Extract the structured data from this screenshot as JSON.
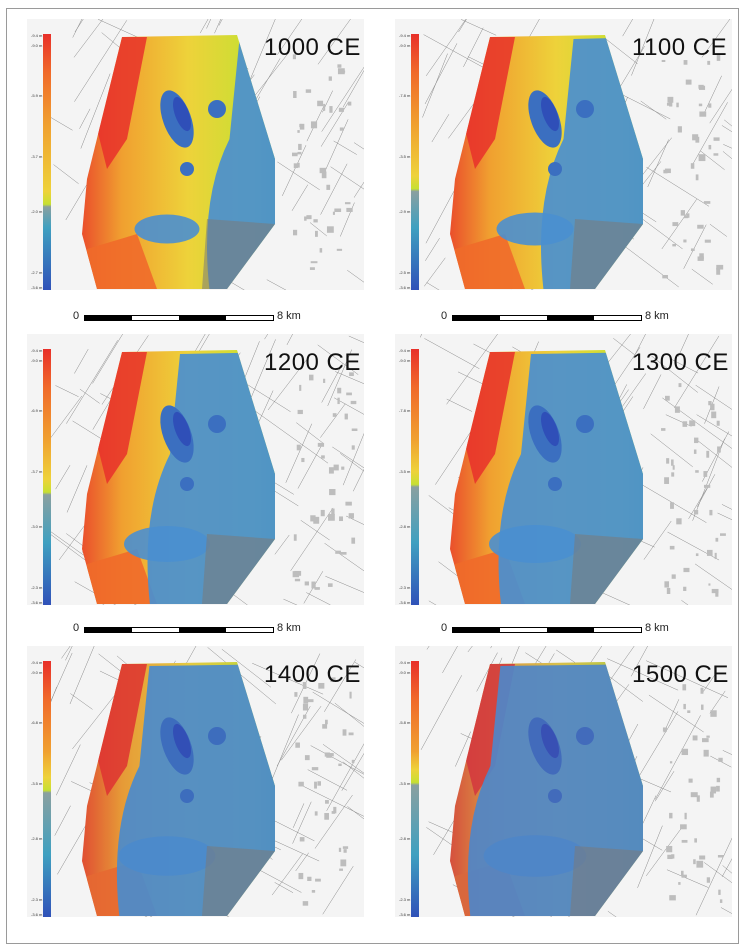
{
  "panels": [
    {
      "year": "1000 CE",
      "legend": [
        "-9.4 m",
        "-9.0 m",
        "-5.9 m",
        "-3.7 m",
        "-2.0 m",
        "-2.7 m",
        "-3.6 m"
      ],
      "water": 0.25
    },
    {
      "year": "1100 CE",
      "legend": [
        "-9.4 m",
        "-9.0 m",
        "-7.8 m",
        "-3.5 m",
        "-2.9 m",
        "-2.5 m",
        "-3.6 m"
      ],
      "water": 0.45
    },
    {
      "year": "1200 CE",
      "legend": [
        "-9.4 m",
        "-9.0 m",
        "-6.9 m",
        "-3.7 m",
        "-3.0 m",
        "-2.3 m",
        "-3.6 m"
      ],
      "water": 0.6
    },
    {
      "year": "1300 CE",
      "legend": [
        "-9.4 m",
        "-9.0 m",
        "-7.8 m",
        "-3.5 m",
        "-2.8 m",
        "-2.3 m",
        "-3.6 m"
      ],
      "water": 0.7
    },
    {
      "year": "1400 CE",
      "legend": [
        "-9.4 m",
        "-9.0 m",
        "-6.8 m",
        "-3.5 m",
        "-2.8 m",
        "-2.3 m",
        "-3.6 m"
      ],
      "water": 0.78
    },
    {
      "year": "1500 CE",
      "legend": [
        "-9.4 m",
        "-9.0 m",
        "-5.8 m",
        "-3.5 m",
        "-2.8 m",
        "-2.3 m",
        "-3.6 m"
      ],
      "water": 0.88
    }
  ],
  "scalebar": {
    "zero": "0",
    "distance": "8 km"
  },
  "colors": {
    "ramp": [
      "#e8302a",
      "#f06a2a",
      "#f0a030",
      "#eed23a",
      "#c6e032",
      "#7acb3a"
    ],
    "water": [
      "#4a8fd0",
      "#3b6fc0",
      "#2f4fb8"
    ],
    "basemap": "#f4f4f4",
    "lines": "#8a8a8a"
  }
}
